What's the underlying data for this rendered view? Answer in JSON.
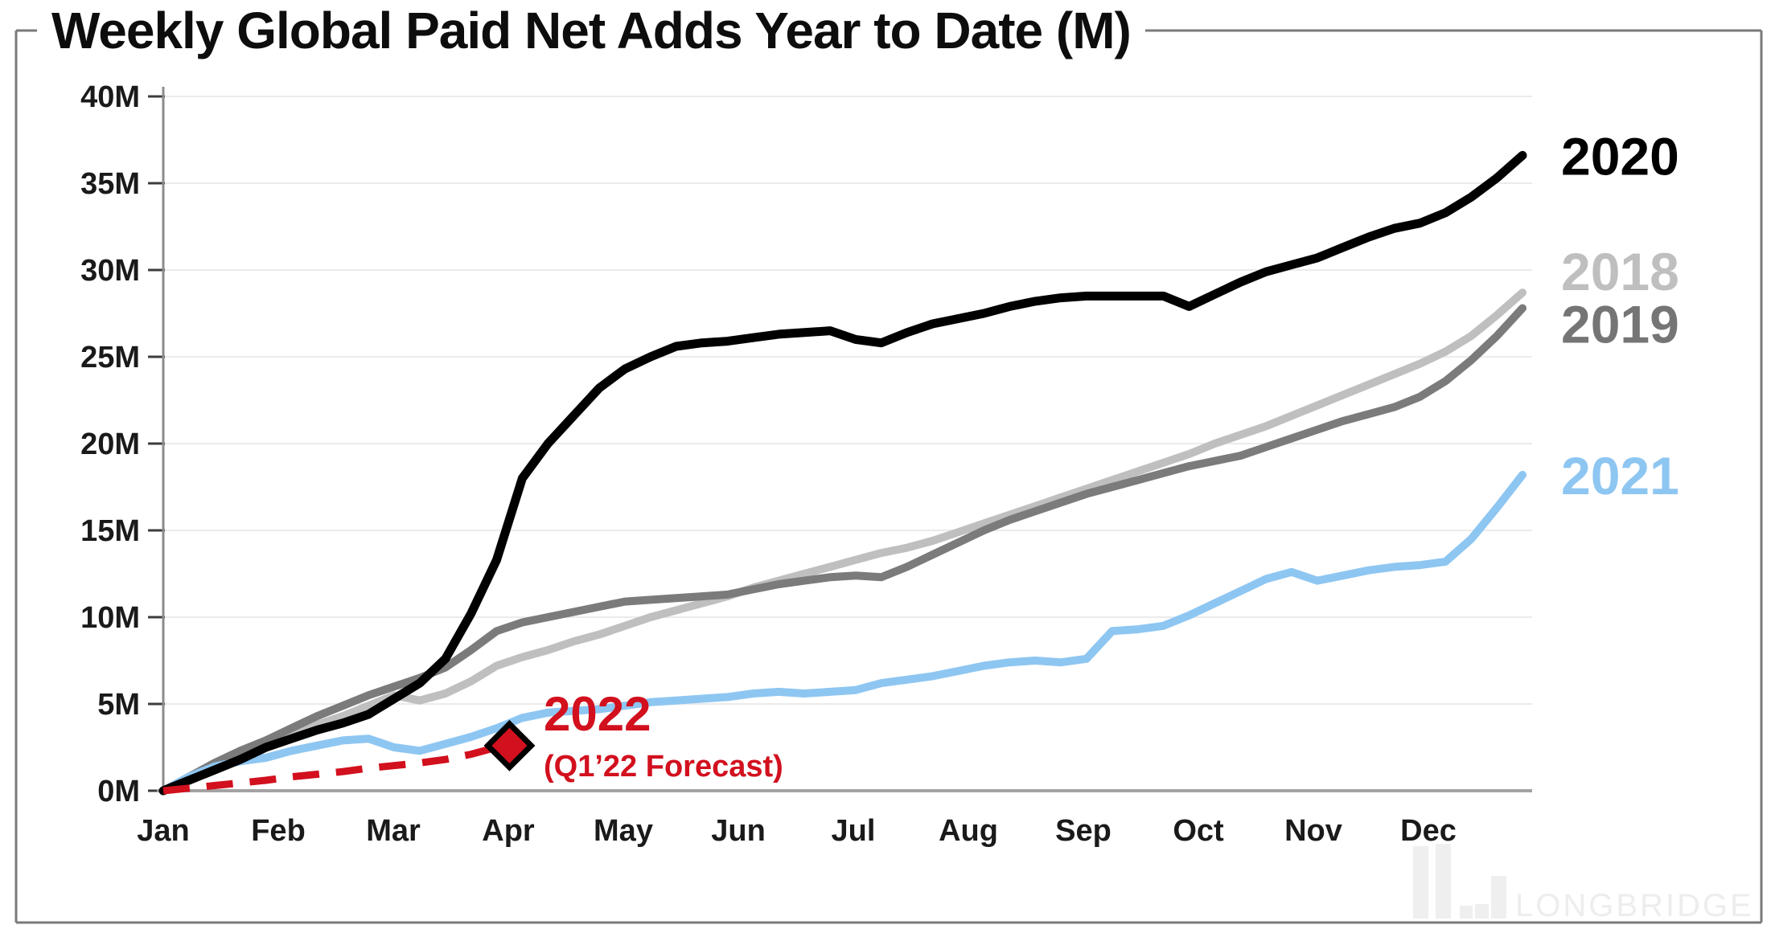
{
  "title": "Weekly Global Paid Net Adds Year to Date (M)",
  "watermark": {
    "text": "LONGBRIDGE",
    "color": "#ededed",
    "bar_color": "#efefef"
  },
  "frame_color": "#7a7a7a",
  "chart_data": {
    "type": "line",
    "title": "Weekly Global Paid Net Adds Year to Date (M)",
    "x_axis": {
      "unit": "week of year (0-53)",
      "tick_labels": [
        "Jan",
        "Feb",
        "Mar",
        "Apr",
        "May",
        "Jun",
        "Jul",
        "Aug",
        "Sep",
        "Oct",
        "Nov",
        "Dec"
      ]
    },
    "y_axis": {
      "min": 0,
      "max": 40,
      "tick_values": [
        0,
        5,
        10,
        15,
        20,
        25,
        30,
        35,
        40
      ],
      "tick_labels": [
        "0M",
        "5M",
        "10M",
        "15M",
        "20M",
        "25M",
        "30M",
        "35M",
        "40M"
      ],
      "grid": true,
      "grid_color": "#ebebeb",
      "axis_color": "#8c8c8c",
      "tick_color": "#3c3c3c",
      "label_color": "#1a1a1a"
    },
    "legend_position": "right-end-labels",
    "series": [
      {
        "name": "2018",
        "color": "#bfbfbf",
        "style": "solid",
        "weekly_values": [
          0,
          0.7,
          1.4,
          2.0,
          2.5,
          3.1,
          3.8,
          4.3,
          4.9,
          5.5,
          5.2,
          5.6,
          6.3,
          7.2,
          7.7,
          8.1,
          8.6,
          9.0,
          9.5,
          10.0,
          10.4,
          10.8,
          11.2,
          11.7,
          12.1,
          12.5,
          12.9,
          13.3,
          13.7,
          14.0,
          14.4,
          14.9,
          15.4,
          15.9,
          16.4,
          16.9,
          17.4,
          17.9,
          18.4,
          18.9,
          19.4,
          20.0,
          20.5,
          21.0,
          21.6,
          22.2,
          22.8,
          23.4,
          24.0,
          24.6,
          25.3,
          26.2,
          27.4,
          28.7
        ]
      },
      {
        "name": "2019",
        "color": "#7b7b7b",
        "style": "solid",
        "weekly_values": [
          0,
          0.8,
          1.6,
          2.3,
          2.9,
          3.6,
          4.3,
          4.9,
          5.5,
          6.0,
          6.5,
          7.1,
          8.1,
          9.2,
          9.7,
          10.0,
          10.3,
          10.6,
          10.9,
          11.0,
          11.1,
          11.2,
          11.3,
          11.6,
          11.9,
          12.1,
          12.3,
          12.4,
          12.3,
          12.9,
          13.6,
          14.3,
          15.0,
          15.6,
          16.1,
          16.6,
          17.1,
          17.5,
          17.9,
          18.3,
          18.7,
          19.0,
          19.3,
          19.8,
          20.3,
          20.8,
          21.3,
          21.7,
          22.1,
          22.7,
          23.6,
          24.8,
          26.2,
          27.8
        ]
      },
      {
        "name": "2020",
        "color": "#000000",
        "style": "solid",
        "weekly_values": [
          0,
          0.6,
          1.2,
          1.8,
          2.5,
          3.0,
          3.5,
          3.9,
          4.4,
          5.3,
          6.2,
          7.6,
          10.2,
          13.3,
          18.0,
          20.0,
          21.6,
          23.2,
          24.3,
          25.0,
          25.6,
          25.8,
          25.9,
          26.1,
          26.3,
          26.4,
          26.5,
          26.0,
          25.8,
          26.4,
          26.9,
          27.2,
          27.5,
          27.9,
          28.2,
          28.4,
          28.5,
          28.5,
          28.5,
          28.5,
          27.9,
          28.6,
          29.3,
          29.9,
          30.3,
          30.7,
          31.3,
          31.9,
          32.4,
          32.7,
          33.3,
          34.2,
          35.3,
          36.6
        ]
      },
      {
        "name": "2021",
        "color": "#8ec6f2",
        "style": "solid",
        "weekly_values": [
          0,
          0.8,
          1.4,
          1.7,
          1.9,
          2.3,
          2.6,
          2.9,
          3.0,
          2.5,
          2.3,
          2.7,
          3.1,
          3.6,
          4.2,
          4.5,
          4.6,
          4.7,
          4.9,
          5.1,
          5.2,
          5.3,
          5.4,
          5.6,
          5.7,
          5.6,
          5.7,
          5.8,
          6.2,
          6.4,
          6.6,
          6.9,
          7.2,
          7.4,
          7.5,
          7.4,
          7.6,
          9.2,
          9.3,
          9.5,
          10.1,
          10.8,
          11.5,
          12.2,
          12.6,
          12.1,
          12.4,
          12.7,
          12.9,
          13.0,
          13.2,
          14.5,
          16.3,
          18.2
        ]
      },
      {
        "name": "2022",
        "color": "#d2101e",
        "style": "dashed",
        "weekly_values": [
          0,
          0.15,
          0.3,
          0.45,
          0.6,
          0.8,
          0.95,
          1.1,
          1.3,
          1.45,
          1.6,
          1.8,
          2.1,
          2.5
        ]
      }
    ],
    "end_labels": [
      {
        "series": "2020",
        "text": "2020",
        "color": "#000000"
      },
      {
        "series": "2018",
        "text": "2018",
        "color": "#bfbfbf"
      },
      {
        "series": "2019",
        "text": "2019",
        "color": "#757575"
      },
      {
        "series": "2021",
        "text": "2021",
        "color": "#8ec6f2"
      }
    ],
    "annotation": {
      "label": "2022",
      "sublabel": "(Q1’22 Forecast)",
      "color": "#d2101e",
      "marker": {
        "shape": "diamond",
        "week": 13.5,
        "value": 2.6,
        "fill": "#d2101e",
        "stroke": "#000000"
      }
    }
  }
}
